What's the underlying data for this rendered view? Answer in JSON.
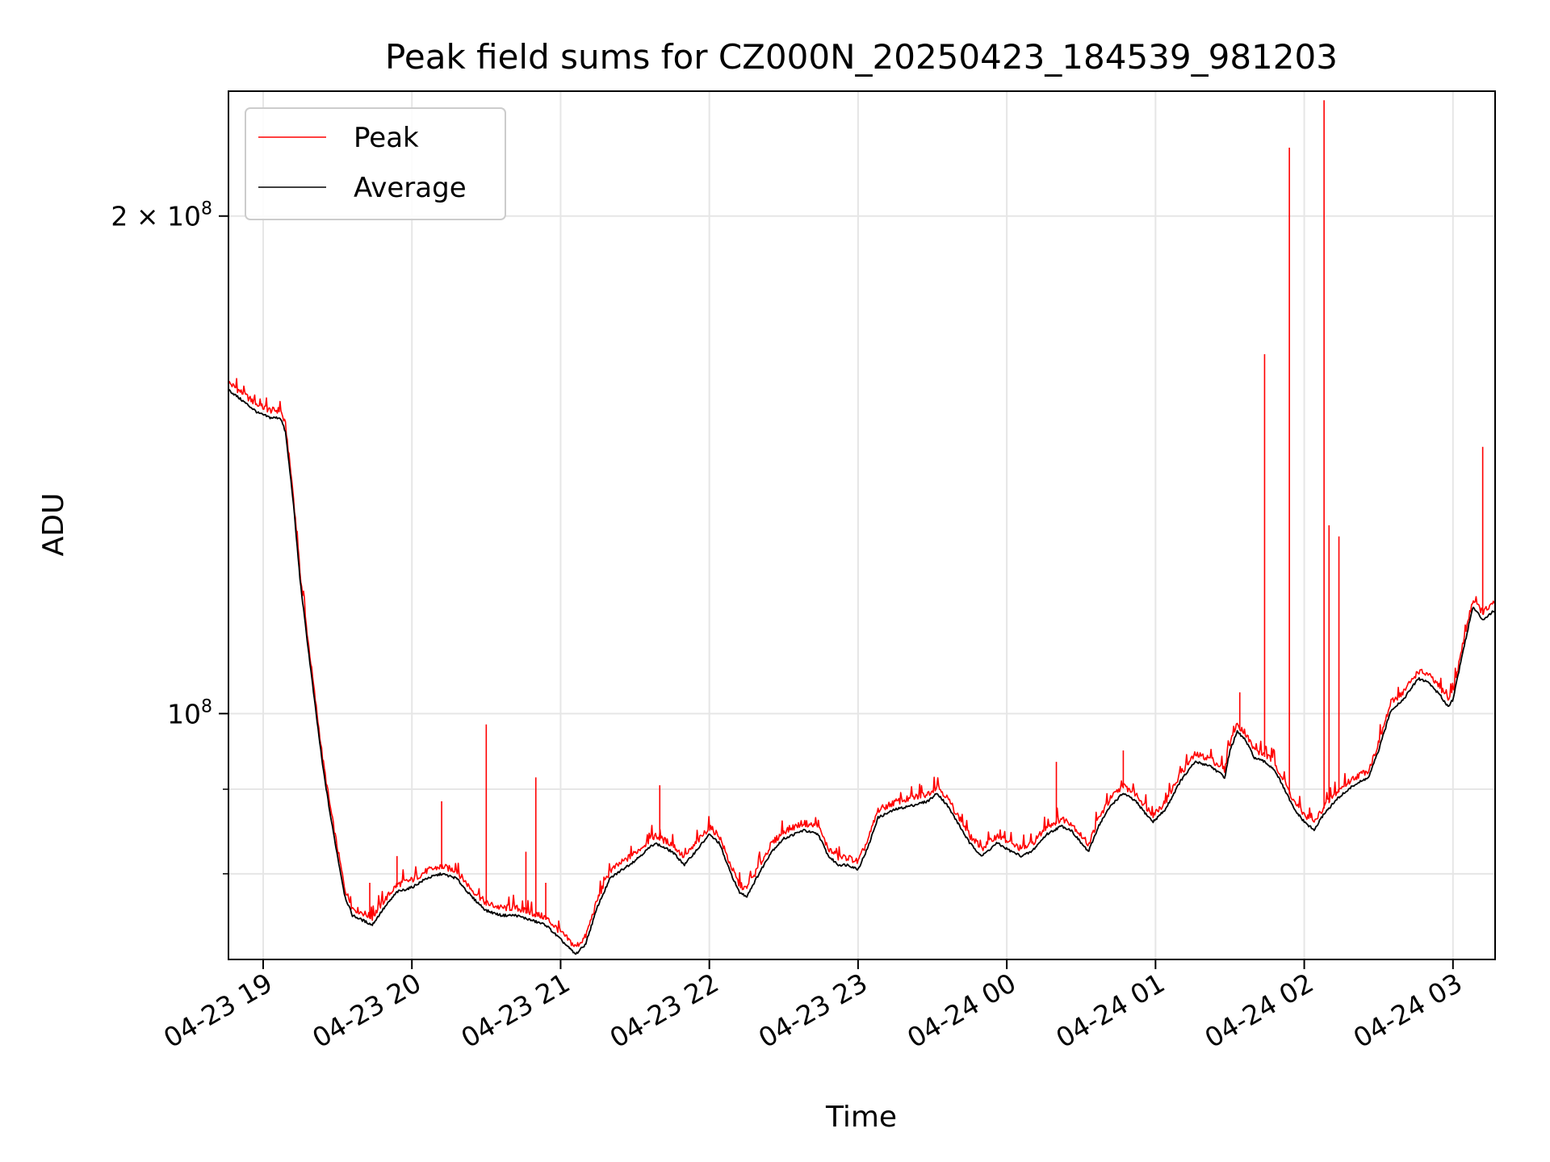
{
  "chart_data": {
    "type": "line",
    "title": "Peak field sums for CZ000N_20250423_184539_981203",
    "xlabel": "Time",
    "ylabel": "ADU",
    "y_scale": "log",
    "ylim": [
      71000000,
      238000000
    ],
    "xlim": [
      "2025-04-23 18:46",
      "2025-04-24 03:17"
    ],
    "grid": true,
    "legend": {
      "location": "upper-left",
      "entries": [
        "Peak",
        "Average"
      ]
    },
    "x_ticks": [
      {
        "time": "2025-04-23 19:00",
        "label": "04-23 19"
      },
      {
        "time": "2025-04-23 20:00",
        "label": "04-23 20"
      },
      {
        "time": "2025-04-23 21:00",
        "label": "04-23 21"
      },
      {
        "time": "2025-04-23 22:00",
        "label": "04-23 22"
      },
      {
        "time": "2025-04-23 23:00",
        "label": "04-23 23"
      },
      {
        "time": "2025-04-24 00:00",
        "label": "04-24 00"
      },
      {
        "time": "2025-04-24 01:00",
        "label": "04-24 01"
      },
      {
        "time": "2025-04-24 02:00",
        "label": "04-24 02"
      },
      {
        "time": "2025-04-24 03:00",
        "label": "04-24 03"
      }
    ],
    "y_ticks": [
      {
        "value": 100000000,
        "label_base": "10",
        "label_exp": "8",
        "label_coef": ""
      },
      {
        "value": 200000000,
        "label_base": "10",
        "label_exp": "8",
        "label_coef": "2 × "
      }
    ],
    "y_minor_ticks": [
      80000000,
      90000000
    ],
    "series": [
      {
        "name": "Average",
        "color": "#000000",
        "points": [
          [
            "2025-04-23 18:46",
            157000000
          ],
          [
            "2025-04-23 18:52",
            154500000
          ],
          [
            "2025-04-23 18:58",
            152000000
          ],
          [
            "2025-04-23 19:03",
            151000000
          ],
          [
            "2025-04-23 19:07",
            151000000
          ],
          [
            "2025-04-23 19:09",
            148000000
          ],
          [
            "2025-04-23 19:12",
            135000000
          ],
          [
            "2025-04-23 19:15",
            120000000
          ],
          [
            "2025-04-23 19:18",
            110000000
          ],
          [
            "2025-04-23 19:21",
            101000000
          ],
          [
            "2025-04-23 19:24",
            93000000
          ],
          [
            "2025-04-23 19:27",
            87000000
          ],
          [
            "2025-04-23 19:30",
            82000000
          ],
          [
            "2025-04-23 19:33",
            77500000
          ],
          [
            "2025-04-23 19:36",
            75500000
          ],
          [
            "2025-04-23 19:40",
            75000000
          ],
          [
            "2025-04-23 19:44",
            74500000
          ],
          [
            "2025-04-23 19:48",
            76000000
          ],
          [
            "2025-04-23 19:54",
            78000000
          ],
          [
            "2025-04-23 20:00",
            78500000
          ],
          [
            "2025-04-23 20:06",
            79500000
          ],
          [
            "2025-04-23 20:12",
            80000000
          ],
          [
            "2025-04-23 20:18",
            79500000
          ],
          [
            "2025-04-23 20:24",
            77500000
          ],
          [
            "2025-04-23 20:30",
            76000000
          ],
          [
            "2025-04-23 20:36",
            75500000
          ],
          [
            "2025-04-23 20:42",
            75500000
          ],
          [
            "2025-04-23 20:48",
            75000000
          ],
          [
            "2025-04-23 20:54",
            74500000
          ],
          [
            "2025-04-23 21:00",
            73000000
          ],
          [
            "2025-04-23 21:06",
            71500000
          ],
          [
            "2025-04-23 21:10",
            72500000
          ],
          [
            "2025-04-23 21:15",
            76500000
          ],
          [
            "2025-04-23 21:20",
            79500000
          ],
          [
            "2025-04-23 21:30",
            81500000
          ],
          [
            "2025-04-23 21:38",
            83500000
          ],
          [
            "2025-04-23 21:45",
            82500000
          ],
          [
            "2025-04-23 21:50",
            81000000
          ],
          [
            "2025-04-23 22:00",
            84500000
          ],
          [
            "2025-04-23 22:04",
            83500000
          ],
          [
            "2025-04-23 22:08",
            80500000
          ],
          [
            "2025-04-23 22:12",
            78000000
          ],
          [
            "2025-04-23 22:15",
            77500000
          ],
          [
            "2025-04-23 22:20",
            80000000
          ],
          [
            "2025-04-23 22:25",
            82500000
          ],
          [
            "2025-04-23 22:30",
            84000000
          ],
          [
            "2025-04-23 22:38",
            85000000
          ],
          [
            "2025-04-23 22:44",
            84500000
          ],
          [
            "2025-04-23 22:48",
            82000000
          ],
          [
            "2025-04-23 22:52",
            81000000
          ],
          [
            "2025-04-23 22:56",
            81000000
          ],
          [
            "2025-04-23 23:00",
            80500000
          ],
          [
            "2025-04-23 23:04",
            83000000
          ],
          [
            "2025-04-23 23:08",
            86500000
          ],
          [
            "2025-04-23 23:15",
            87500000
          ],
          [
            "2025-04-23 23:22",
            88000000
          ],
          [
            "2025-04-23 23:28",
            88500000
          ],
          [
            "2025-04-23 23:32",
            89500000
          ],
          [
            "2025-04-23 23:36",
            88000000
          ],
          [
            "2025-04-23 23:40",
            86000000
          ],
          [
            "2025-04-23 23:45",
            83500000
          ],
          [
            "2025-04-23 23:50",
            82000000
          ],
          [
            "2025-04-23 23:56",
            83500000
          ],
          [
            "2025-04-24 00:02",
            82500000
          ],
          [
            "2025-04-24 00:06",
            82000000
          ],
          [
            "2025-04-24 00:10",
            82500000
          ],
          [
            "2025-04-24 00:16",
            84500000
          ],
          [
            "2025-04-24 00:22",
            85500000
          ],
          [
            "2025-04-24 00:26",
            85000000
          ],
          [
            "2025-04-24 00:30",
            83500000
          ],
          [
            "2025-04-24 00:33",
            82500000
          ],
          [
            "2025-04-24 00:37",
            85500000
          ],
          [
            "2025-04-24 00:42",
            88000000
          ],
          [
            "2025-04-24 00:47",
            89500000
          ],
          [
            "2025-04-24 00:52",
            88500000
          ],
          [
            "2025-04-24 00:56",
            87000000
          ],
          [
            "2025-04-24 00:59",
            86000000
          ],
          [
            "2025-04-24 01:04",
            87500000
          ],
          [
            "2025-04-24 01:10",
            91000000
          ],
          [
            "2025-04-24 01:16",
            93500000
          ],
          [
            "2025-04-24 01:22",
            93000000
          ],
          [
            "2025-04-24 01:26",
            92000000
          ],
          [
            "2025-04-24 01:28",
            91500000
          ],
          [
            "2025-04-24 01:30",
            95000000
          ],
          [
            "2025-04-24 01:33",
            97500000
          ],
          [
            "2025-04-24 01:36",
            96500000
          ],
          [
            "2025-04-24 01:40",
            94000000
          ],
          [
            "2025-04-24 01:44",
            93500000
          ],
          [
            "2025-04-24 01:48",
            92500000
          ],
          [
            "2025-04-24 01:52",
            90000000
          ],
          [
            "2025-04-24 01:56",
            87500000
          ],
          [
            "2025-04-24 02:00",
            86000000
          ],
          [
            "2025-04-24 02:04",
            85000000
          ],
          [
            "2025-04-24 02:08",
            87000000
          ],
          [
            "2025-04-24 02:14",
            89000000
          ],
          [
            "2025-04-24 02:20",
            90500000
          ],
          [
            "2025-04-24 02:26",
            91500000
          ],
          [
            "2025-04-24 02:30",
            95000000
          ],
          [
            "2025-04-24 02:35",
            100500000
          ],
          [
            "2025-04-24 02:40",
            102000000
          ],
          [
            "2025-04-24 02:46",
            105000000
          ],
          [
            "2025-04-24 02:50",
            104500000
          ],
          [
            "2025-04-24 02:55",
            102500000
          ],
          [
            "2025-04-24 02:58",
            101000000
          ],
          [
            "2025-04-24 03:00",
            102000000
          ],
          [
            "2025-04-24 03:04",
            109000000
          ],
          [
            "2025-04-24 03:08",
            116000000
          ],
          [
            "2025-04-24 03:12",
            114000000
          ],
          [
            "2025-04-24 03:17",
            115500000
          ]
        ]
      },
      {
        "name": "Peak",
        "color": "#ff0000",
        "spikes": [
          [
            "2025-04-23 19:43",
            79000000
          ],
          [
            "2025-04-23 19:54",
            82000000
          ],
          [
            "2025-04-23 20:12",
            88500000
          ],
          [
            "2025-04-23 20:30",
            98500000
          ],
          [
            "2025-04-23 20:46",
            82500000
          ],
          [
            "2025-04-23 20:50",
            91500000
          ],
          [
            "2025-04-23 20:54",
            79000000
          ],
          [
            "2025-04-23 21:40",
            90500000
          ],
          [
            "2025-04-24 00:20",
            93500000
          ],
          [
            "2025-04-24 00:47",
            95000000
          ],
          [
            "2025-04-24 01:18",
            94000000
          ],
          [
            "2025-04-24 01:34",
            103000000
          ],
          [
            "2025-04-24 01:44",
            165000000
          ],
          [
            "2025-04-24 01:54",
            220000000
          ],
          [
            "2025-04-24 02:08",
            235000000
          ],
          [
            "2025-04-24 02:10",
            130000000
          ],
          [
            "2025-04-24 02:14",
            128000000
          ],
          [
            "2025-04-24 03:12",
            145000000
          ]
        ]
      }
    ]
  }
}
